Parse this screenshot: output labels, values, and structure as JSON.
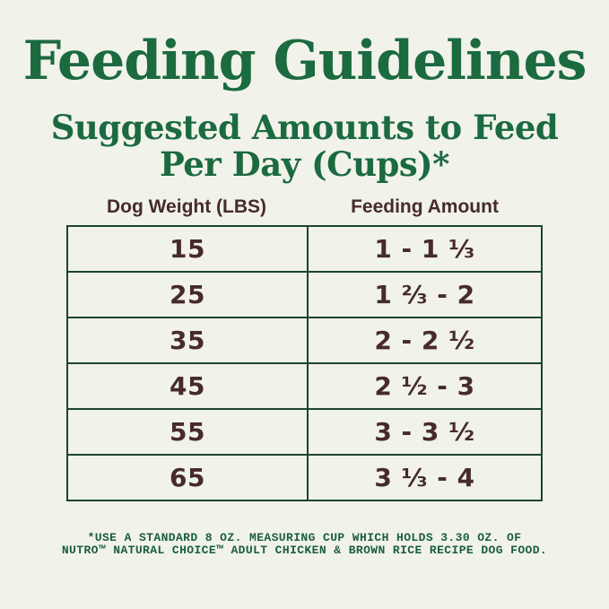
{
  "page": {
    "title": "Feeding Guidelines",
    "subtitle_line1": "Suggested Amounts to Feed",
    "subtitle_line2": "Per Day (Cups)*"
  },
  "table": {
    "headers": [
      "Dog Weight (LBS)",
      "Feeding Amount"
    ],
    "rows": [
      {
        "weight": "15",
        "amount": "1 - 1 ⅓"
      },
      {
        "weight": "25",
        "amount": "1 ⅔ - 2"
      },
      {
        "weight": "35",
        "amount": "2 - 2 ½"
      },
      {
        "weight": "45",
        "amount": "2 ½ - 3"
      },
      {
        "weight": "55",
        "amount": "3 - 3 ½"
      },
      {
        "weight": "65",
        "amount": "3 ⅓ - 4"
      }
    ]
  },
  "footnote": {
    "line1": "*USE A STANDARD 8 OZ. MEASURING CUP WHICH HOLDS 3.30 OZ. OF",
    "line2": "NUTRO™ NATURAL CHOICE™ ADULT CHICKEN & BROWN RICE RECIPE DOG FOOD."
  },
  "colors": {
    "background": "#f1f2ea",
    "heading_green": "#1b6a40",
    "footnote_green": "#1a5f38",
    "text_brown": "#462b2a",
    "table_border_green": "#1c452e"
  }
}
